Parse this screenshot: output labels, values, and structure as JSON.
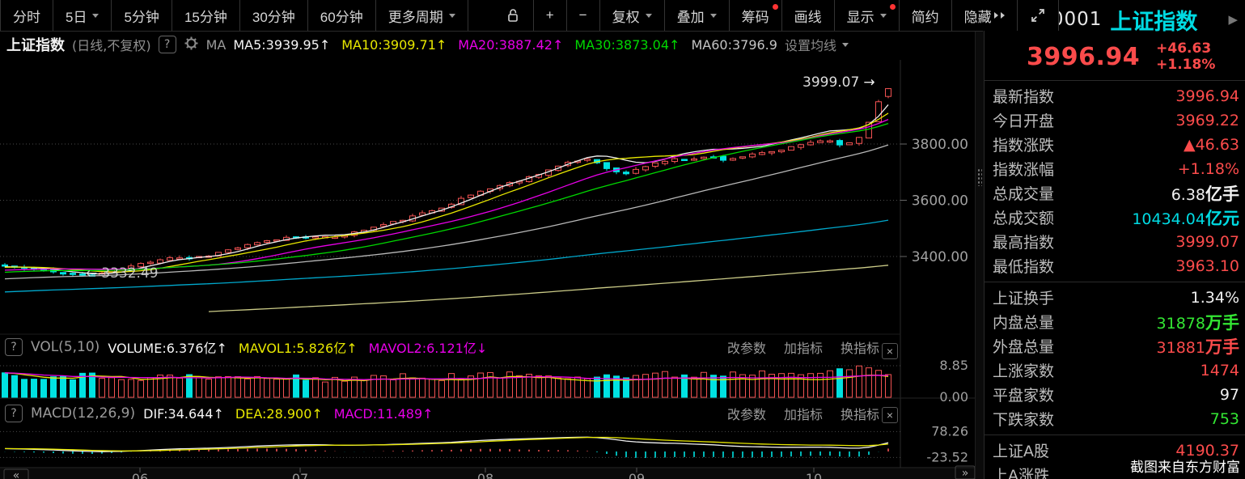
{
  "ui": {
    "help_glyph": "?",
    "close_glyph": "×"
  },
  "watermark": "截图来自东方财富",
  "colors": {
    "up": "#f25252",
    "down": "#00e2e2",
    "red": "#fb4b4b",
    "green": "#33e633",
    "cyan": "#00dbe3",
    "white": "#f0f0f0",
    "yellow": "#e8e800",
    "magenta": "#e800e8",
    "ma_green": "#00d800",
    "ma_gray": "#b8b8b8",
    "ma_cyan": "#00a8cc",
    "ma_pale": "#cccc88"
  },
  "toolbar": {
    "periods": [
      {
        "name": "minute-view",
        "label": "分时"
      },
      {
        "name": "5day-view",
        "label": "5日",
        "caret": true
      },
      {
        "name": "5min-view",
        "label": "5分钟"
      },
      {
        "name": "15min-view",
        "label": "15分钟"
      },
      {
        "name": "30min-view",
        "label": "30分钟"
      },
      {
        "name": "60min-view",
        "label": "60分钟"
      },
      {
        "name": "more-periods",
        "label": "更多周期",
        "caret": true
      }
    ],
    "tools": [
      {
        "name": "lock",
        "icon": "unlock-icon"
      },
      {
        "name": "zoom-in",
        "label": "+"
      },
      {
        "name": "zoom-out",
        "label": "−"
      },
      {
        "name": "adjust-price",
        "label": "复权",
        "caret": true
      },
      {
        "name": "overlay",
        "label": "叠加",
        "caret": true
      },
      {
        "name": "chip-distribution",
        "label": "筹码",
        "dot": true
      },
      {
        "name": "draw-line",
        "label": "画线"
      },
      {
        "name": "display",
        "label": "显示",
        "caret": true,
        "dot": true
      },
      {
        "name": "simple-mode",
        "label": "简约"
      },
      {
        "name": "hide",
        "label": "隐藏",
        "chevrons": true
      },
      {
        "name": "fullscreen",
        "icon": "fullscreen-icon"
      }
    ]
  },
  "legend": {
    "title": "上证指数",
    "subtitle": "(日线,不复权)",
    "ma_label": "MA",
    "items": [
      {
        "label": "MA5:3939.95",
        "arrow": "↑",
        "color": "#f5f5f5"
      },
      {
        "label": "MA10:3909.71",
        "arrow": "↑",
        "color": "#e8e800"
      },
      {
        "label": "MA20:3887.42",
        "arrow": "↑",
        "color": "#e800e8"
      },
      {
        "label": "MA30:3873.04",
        "arrow": "↑",
        "color": "#00d800"
      },
      {
        "label": "MA60:3796.9",
        "arrow": "",
        "color": "#c4c4c4"
      }
    ],
    "settings": "设置均线"
  },
  "vol_panel": {
    "name": "VOL(5,10)",
    "items": [
      {
        "label": "VOLUME:6.376亿",
        "arrow": "↑",
        "color": "#f5f5f5"
      },
      {
        "label": "MAVOL1:5.826亿",
        "arrow": "↑",
        "color": "#e8e800"
      },
      {
        "label": "MAVOL2:6.121亿",
        "arrow": "↓",
        "color": "#e800e8"
      }
    ],
    "actions": [
      "改参数",
      "加指标",
      "换指标"
    ]
  },
  "macd_panel": {
    "name": "MACD(12,26,9)",
    "items": [
      {
        "label": "DIF:34.644",
        "arrow": "↑",
        "color": "#f5f5f5"
      },
      {
        "label": "DEA:28.900",
        "arrow": "↑",
        "color": "#e8e800"
      },
      {
        "label": "MACD:11.489",
        "arrow": "↑",
        "color": "#e800e8"
      }
    ],
    "actions": [
      "改参数",
      "加指标",
      "换指标"
    ]
  },
  "sidebar": {
    "prev_glyph": "◀",
    "next_glyph": "▶",
    "code": "000001",
    "name": "上证指数",
    "price": "3996.94",
    "change": "+46.63",
    "change_pct": "+1.18%",
    "rows": [
      {
        "label": "最新指数",
        "value": "3996.94",
        "unit": "",
        "color": "red"
      },
      {
        "label": "今日开盘",
        "value": "3969.22",
        "unit": "",
        "color": "red"
      },
      {
        "label": "指数涨跌",
        "value": "▲46.63",
        "unit": "",
        "color": "red"
      },
      {
        "label": "指数涨幅",
        "value": "+1.18%",
        "unit": "",
        "color": "red"
      },
      {
        "label": "总成交量",
        "value": "6.38",
        "unit": "亿手",
        "color": "white"
      },
      {
        "label": "总成交额",
        "value": "10434.04",
        "unit": "亿元",
        "color": "cyan"
      },
      {
        "label": "最高指数",
        "value": "3999.07",
        "unit": "",
        "color": "red"
      },
      {
        "label": "最低指数",
        "value": "3963.10",
        "unit": "",
        "color": "red",
        "divider_after": true
      },
      {
        "label": "上证换手",
        "value": "1.34%",
        "unit": "",
        "color": "white"
      },
      {
        "label": "内盘总量",
        "value": "31878",
        "unit": "万手",
        "color": "green"
      },
      {
        "label": "外盘总量",
        "value": "31881",
        "unit": "万手",
        "color": "red"
      },
      {
        "label": "上涨家数",
        "value": "1474",
        "unit": "",
        "color": "red"
      },
      {
        "label": "平盘家数",
        "value": "97",
        "unit": "",
        "color": "white"
      },
      {
        "label": "下跌家数",
        "value": "753",
        "unit": "",
        "color": "green",
        "divider_after": true
      },
      {
        "label": "上证A股",
        "value": "4190.37",
        "unit": "",
        "color": "red"
      },
      {
        "label": "上A涨跌",
        "value": "",
        "unit": "",
        "color": "red"
      }
    ]
  },
  "chart_data": {
    "type": "candlestick",
    "symbol": "000001",
    "title": "上证指数 日线 不复权",
    "y_gridlines": [
      {
        "label": "3800.00",
        "value": 3800
      },
      {
        "label": "3600.00",
        "value": 3600
      },
      {
        "label": "3400.00",
        "value": 3400
      }
    ],
    "x_ticks": [
      {
        "label": "06",
        "x": 173
      },
      {
        "label": "07",
        "x": 371
      },
      {
        "label": "08",
        "x": 600
      },
      {
        "label": "09",
        "x": 787
      },
      {
        "label": "10",
        "x": 1006
      }
    ],
    "nav_prev_glyph": "«",
    "nav_next_glyph": "»",
    "annotations": {
      "high": {
        "text": "3999.07",
        "arrow": "→",
        "value": 3999.07
      },
      "low": {
        "text": "3332.49",
        "arrow": "←",
        "value": 3332.49
      }
    },
    "last_bar": {
      "open": 3969.22,
      "close": 3996.94,
      "high": 3999.07,
      "low": 3963.1,
      "prev_close": 3950.31
    },
    "ma_targets": {
      "ma5": 3939.95,
      "ma10": 3909.71,
      "ma20": 3887.42,
      "ma30": 3873.04,
      "ma60": 3796.9
    },
    "trend": [
      [
        0,
        3366
      ],
      [
        0.022,
        3357
      ],
      [
        0.044,
        3349
      ],
      [
        0.066,
        3341
      ],
      [
        0.088,
        3336
      ],
      [
        0.099,
        3332.8
      ],
      [
        0.11,
        3341
      ],
      [
        0.132,
        3356
      ],
      [
        0.154,
        3374
      ],
      [
        0.176,
        3391
      ],
      [
        0.19,
        3399
      ],
      [
        0.205,
        3393
      ],
      [
        0.23,
        3404
      ],
      [
        0.25,
        3421
      ],
      [
        0.275,
        3440
      ],
      [
        0.3,
        3456
      ],
      [
        0.32,
        3468
      ],
      [
        0.34,
        3472
      ],
      [
        0.36,
        3466
      ],
      [
        0.38,
        3473
      ],
      [
        0.4,
        3489
      ],
      [
        0.42,
        3506
      ],
      [
        0.44,
        3522
      ],
      [
        0.46,
        3540
      ],
      [
        0.48,
        3560
      ],
      [
        0.5,
        3582
      ],
      [
        0.52,
        3609
      ],
      [
        0.54,
        3634
      ],
      [
        0.56,
        3652
      ],
      [
        0.58,
        3668
      ],
      [
        0.6,
        3690
      ],
      [
        0.62,
        3714
      ],
      [
        0.64,
        3734
      ],
      [
        0.66,
        3748
      ],
      [
        0.675,
        3728
      ],
      [
        0.69,
        3700
      ],
      [
        0.705,
        3694
      ],
      [
        0.72,
        3716
      ],
      [
        0.74,
        3736
      ],
      [
        0.76,
        3746
      ],
      [
        0.78,
        3750
      ],
      [
        0.8,
        3754
      ],
      [
        0.815,
        3744
      ],
      [
        0.83,
        3753
      ],
      [
        0.85,
        3763
      ],
      [
        0.87,
        3773
      ],
      [
        0.885,
        3783
      ],
      [
        0.9,
        3796
      ],
      [
        0.915,
        3809
      ],
      [
        0.93,
        3816
      ],
      [
        0.942,
        3802
      ],
      [
        0.953,
        3797
      ],
      [
        0.962,
        3810
      ],
      [
        0.972,
        3840
      ],
      [
        0.978,
        3878
      ],
      [
        0.989,
        3950.31
      ],
      [
        1,
        3996.94
      ]
    ],
    "volume": {
      "current": 6.376,
      "mavol1_end": 5.826,
      "mavol2_end": 6.121,
      "axis": [
        {
          "label": "8.85",
          "value": 8.85
        },
        {
          "label": "0.00",
          "value": 0
        }
      ],
      "anchors": [
        [
          0,
          6.2
        ],
        [
          0.2,
          5.6
        ],
        [
          0.35,
          5.2
        ],
        [
          0.5,
          5.8
        ],
        [
          0.6,
          6.4
        ],
        [
          0.7,
          6.0
        ],
        [
          0.8,
          6.6
        ],
        [
          0.9,
          7.4
        ],
        [
          0.97,
          8.3
        ],
        [
          1,
          6.376
        ]
      ]
    },
    "macd": {
      "dif_end": 34.644,
      "dea_end": 28.9,
      "hist_end": 11.489,
      "axis": [
        {
          "label": "78.26",
          "value": 78.26
        },
        {
          "label": "-23.52",
          "value": -23.52
        }
      ]
    }
  }
}
